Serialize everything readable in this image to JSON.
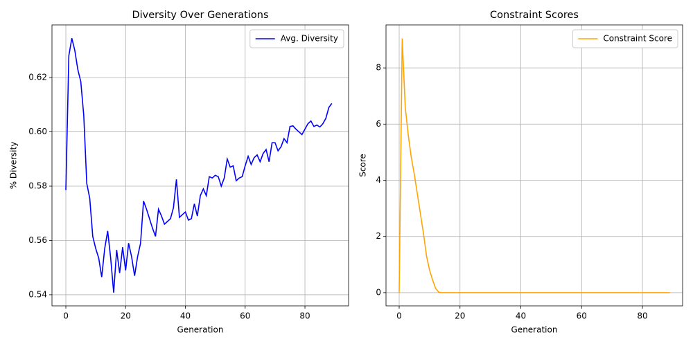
{
  "chart_data": [
    {
      "type": "line",
      "title": "Diversity Over Generations",
      "xlabel": "Generation",
      "ylabel": "% Diversity",
      "x": [
        0,
        1,
        2,
        3,
        4,
        5,
        6,
        7,
        8,
        9,
        10,
        11,
        12,
        13,
        14,
        15,
        16,
        17,
        18,
        19,
        20,
        21,
        22,
        23,
        24,
        25,
        26,
        27,
        28,
        29,
        30,
        31,
        32,
        33,
        34,
        35,
        36,
        37,
        38,
        39,
        40,
        41,
        42,
        43,
        44,
        45,
        46,
        47,
        48,
        49,
        50,
        51,
        52,
        53,
        54,
        55,
        56,
        57,
        58,
        59,
        60,
        61,
        62,
        63,
        64,
        65,
        66,
        67,
        68,
        69,
        70,
        71,
        72,
        73,
        74,
        75,
        76,
        77,
        78,
        79,
        80,
        81,
        82,
        83,
        84,
        85,
        86,
        87,
        88,
        89
      ],
      "series": [
        {
          "name": "Avg. Diversity",
          "color": "#0000ff",
          "values": [
            0.5785,
            0.628,
            0.6345,
            0.63,
            0.623,
            0.6185,
            0.606,
            0.581,
            0.5755,
            0.5615,
            0.557,
            0.5535,
            0.5465,
            0.557,
            0.5635,
            0.5535,
            0.5408,
            0.5565,
            0.548,
            0.5575,
            0.549,
            0.559,
            0.554,
            0.547,
            0.554,
            0.559,
            0.5745,
            0.5715,
            0.568,
            0.5645,
            0.5615,
            0.5715,
            0.569,
            0.566,
            0.567,
            0.568,
            0.572,
            0.5825,
            0.5685,
            0.5695,
            0.5705,
            0.5675,
            0.568,
            0.5735,
            0.569,
            0.5765,
            0.579,
            0.5765,
            0.5835,
            0.583,
            0.584,
            0.5835,
            0.58,
            0.583,
            0.59,
            0.587,
            0.5875,
            0.582,
            0.583,
            0.5835,
            0.5875,
            0.591,
            0.588,
            0.5905,
            0.5915,
            0.589,
            0.592,
            0.5935,
            0.589,
            0.596,
            0.596,
            0.593,
            0.5945,
            0.5975,
            0.596,
            0.602,
            0.6022,
            0.601,
            0.6,
            0.599,
            0.601,
            0.603,
            0.604,
            0.602,
            0.6025,
            0.6018,
            0.603,
            0.605,
            0.609,
            0.6105
          ]
        }
      ],
      "xlim": [
        -4.64,
        94.6
      ],
      "ylim": [
        0.5359,
        0.6394
      ],
      "xticks": [
        0,
        20,
        40,
        60,
        80
      ],
      "yticks": [
        0.54,
        0.56,
        0.58,
        {
          "value": 0.6,
          "label": "0.60"
        },
        0.62
      ],
      "grid": true,
      "legend": "upper right"
    },
    {
      "type": "line",
      "title": "Constraint Scores",
      "xlabel": "Generation",
      "ylabel": "Score",
      "x": [
        0,
        1,
        2,
        3,
        4,
        5,
        6,
        7,
        8,
        9,
        10,
        11,
        12,
        13,
        14,
        15,
        16,
        17,
        18,
        19,
        20,
        21,
        22,
        23,
        24,
        25,
        26,
        27,
        28,
        29,
        30,
        31,
        32,
        33,
        34,
        35,
        36,
        37,
        38,
        39,
        40,
        41,
        42,
        43,
        44,
        45,
        46,
        47,
        48,
        49,
        50,
        51,
        52,
        53,
        54,
        55,
        56,
        57,
        58,
        59,
        60,
        61,
        62,
        63,
        64,
        65,
        66,
        67,
        68,
        69,
        70,
        71,
        72,
        73,
        74,
        75,
        76,
        77,
        78,
        79,
        80,
        81,
        82,
        83,
        84,
        85,
        86,
        87,
        88,
        89
      ],
      "series": [
        {
          "name": "Constraint Score",
          "color": "#ffa500",
          "values": [
            0,
            9.05,
            6.6,
            5.6,
            4.8,
            4.2,
            3.5,
            2.8,
            2.1,
            1.3,
            0.8,
            0.45,
            0.15,
            0.02,
            0,
            0,
            0,
            0,
            0,
            0,
            0,
            0,
            0,
            0,
            0,
            0,
            0,
            0,
            0,
            0,
            0,
            0,
            0,
            0,
            0,
            0,
            0,
            0,
            0,
            0,
            0,
            0,
            0,
            0,
            0,
            0,
            0,
            0,
            0,
            0,
            0,
            0,
            0,
            0,
            0,
            0,
            0,
            0,
            0,
            0,
            0,
            0,
            0,
            0,
            0,
            0,
            0,
            0,
            0,
            0,
            0,
            0,
            0,
            0,
            0,
            0,
            0,
            0,
            0,
            0,
            0,
            0,
            0,
            0,
            0,
            0,
            0,
            0,
            0,
            0
          ]
        }
      ],
      "xlim": [
        -4.33,
        93.2
      ],
      "ylim": [
        -0.47,
        9.53
      ],
      "xticks": [
        0,
        20,
        40,
        60,
        80
      ],
      "yticks": [
        0,
        2,
        4,
        6,
        8
      ],
      "grid": true,
      "legend": "upper right"
    }
  ]
}
